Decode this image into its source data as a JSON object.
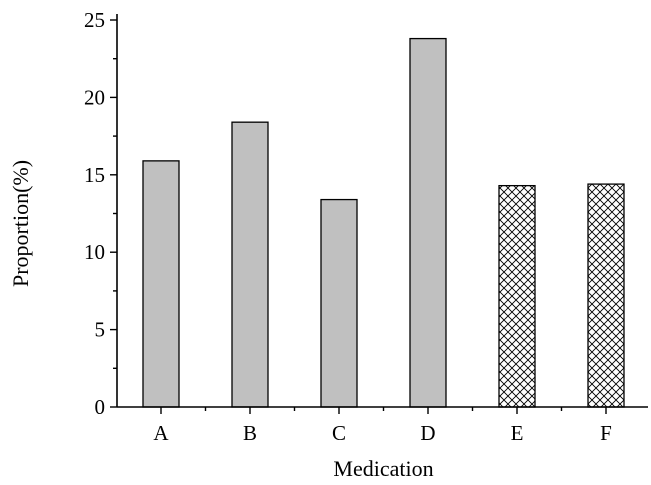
{
  "chart_data": {
    "type": "bar",
    "categories": [
      "A",
      "B",
      "C",
      "D",
      "E",
      "F"
    ],
    "values": [
      15.9,
      18.4,
      13.4,
      23.8,
      14.3,
      14.4
    ],
    "bar_fills": [
      "solid",
      "solid",
      "solid",
      "solid",
      "crosshatch",
      "crosshatch"
    ],
    "colors": {
      "solid": "#c0c0c0",
      "hatch": "#000000",
      "axis": "#000000"
    },
    "title": "",
    "xlabel": "Medication",
    "ylabel": "Proportion(%)",
    "ylim": [
      0,
      25
    ],
    "yticks": [
      0,
      5,
      10,
      15,
      20,
      25
    ],
    "grid": false,
    "legend": false
  }
}
